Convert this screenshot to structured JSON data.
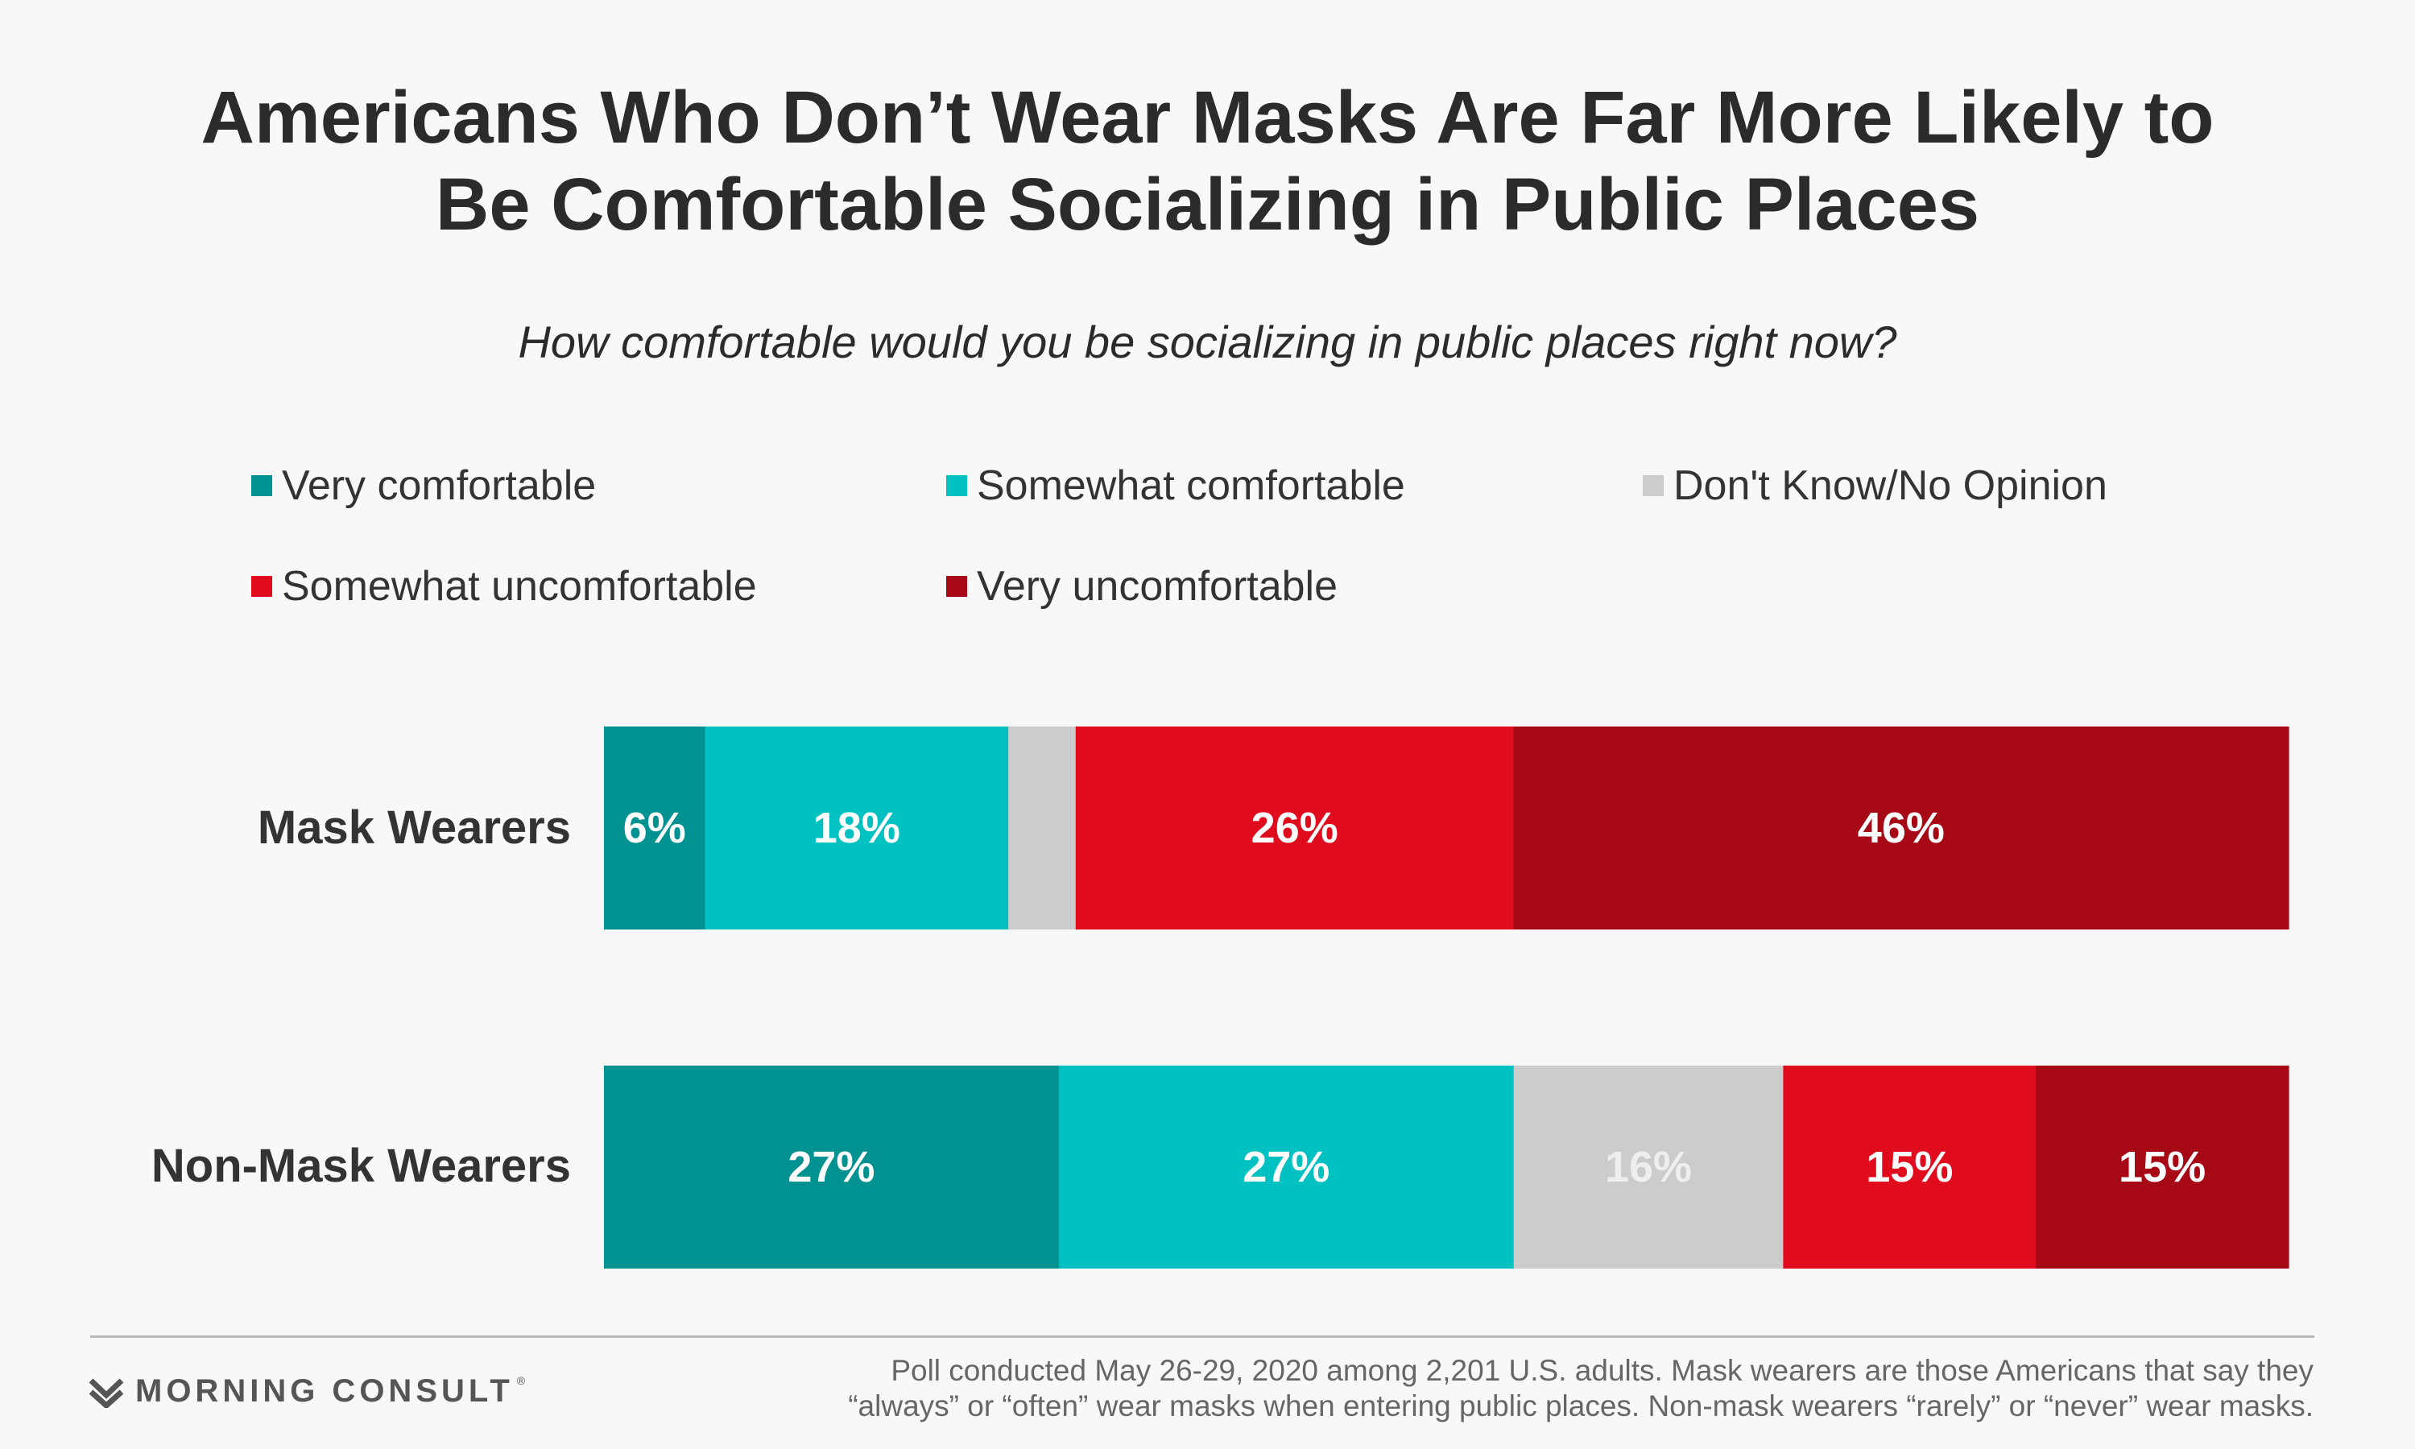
{
  "title": {
    "line1": "Americans Who Don’t Wear Masks Are Far More Likely to",
    "line2": "Be Comfortable Socializing in Public Places"
  },
  "subtitle": "How comfortable would you be socializing in public places right now?",
  "legend": [
    {
      "label": "Very comfortable",
      "color": "#009191"
    },
    {
      "label": "Somewhat comfortable",
      "color": "#00c1c1"
    },
    {
      "label": "Don't Know/No Opinion",
      "color": "#cccccc"
    },
    {
      "label": "Somewhat uncomfortable",
      "color": "#e00b1c"
    },
    {
      "label": "Very uncomfortable",
      "color": "#a60815"
    }
  ],
  "chart_data": {
    "type": "bar",
    "orientation": "horizontal",
    "stacked": true,
    "normalized": true,
    "categories": [
      "Mask Wearers",
      "Non-Mask Wearers"
    ],
    "series": [
      {
        "name": "Very comfortable",
        "color": "#009191",
        "values": [
          6,
          27
        ],
        "labels": [
          "6%",
          "27%"
        ],
        "label_color": "#ffffff"
      },
      {
        "name": "Somewhat comfortable",
        "color": "#00c1c1",
        "values": [
          18,
          27
        ],
        "labels": [
          "18%",
          "27%"
        ],
        "label_color": "#ffffff"
      },
      {
        "name": "Don't Know/No Opinion",
        "color": "#cccccc",
        "values": [
          4,
          16
        ],
        "labels": [
          "",
          "16%"
        ],
        "label_color": "#eeeeee"
      },
      {
        "name": "Somewhat uncomfortable",
        "color": "#e00b1c",
        "values": [
          26,
          15
        ],
        "labels": [
          "26%",
          "15%"
        ],
        "label_color": "#ffffff"
      },
      {
        "name": "Very uncomfortable",
        "color": "#a60815",
        "values": [
          46,
          15
        ],
        "labels": [
          "46%",
          "15%"
        ],
        "label_color": "#ffffff"
      }
    ],
    "legend_position": "top",
    "grid": false
  },
  "footer": {
    "logo_text": "MORNING CONSULT",
    "logo_mark": "®",
    "note_line1": "Poll conducted May 26-29, 2020 among 2,201 U.S. adults. Mask wearers are those Americans that say they",
    "note_line2": "“always” or “often” wear masks when entering public places. Non-mask wearers “rarely” or “never” wear masks."
  }
}
